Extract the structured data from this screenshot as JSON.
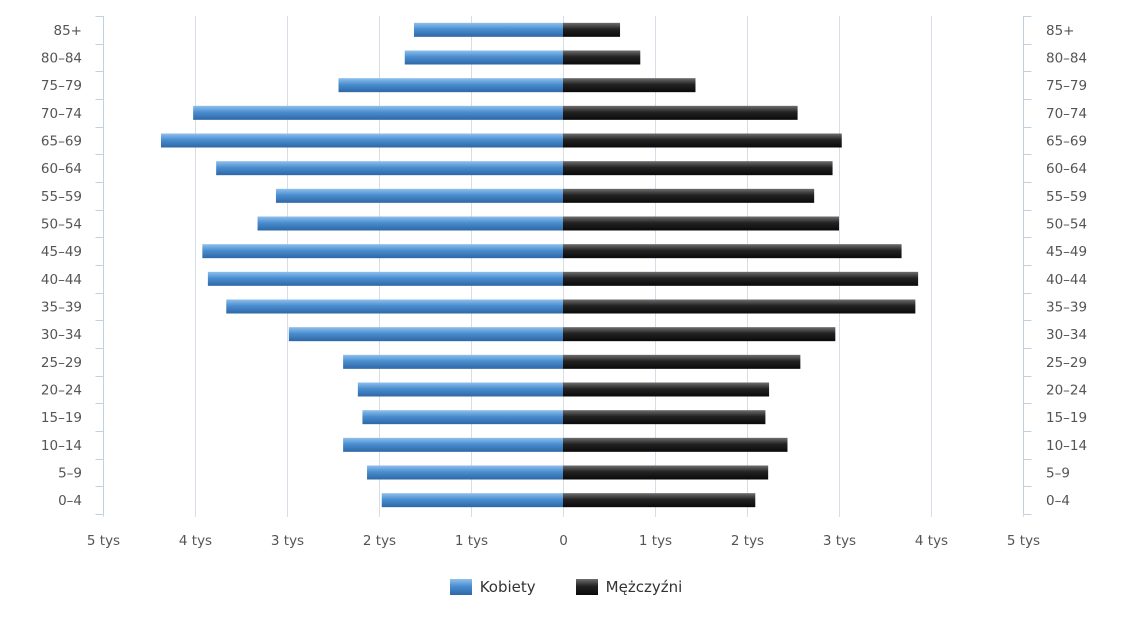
{
  "chart_data": {
    "type": "bar",
    "orientation": "horizontal",
    "title": "",
    "categories": [
      "85+",
      "80-84",
      "75-79",
      "70-74",
      "65-69",
      "60-64",
      "55-59",
      "50-54",
      "45-49",
      "40-44",
      "35-39",
      "30-34",
      "25-29",
      "20-24",
      "15-19",
      "10-14",
      "5-9",
      "0-4"
    ],
    "series": [
      {
        "name": "Kobiety",
        "color": "#3f7fc0",
        "values": [
          1620,
          1720,
          2440,
          4020,
          4370,
          3770,
          3120,
          3320,
          3920,
          3860,
          3660,
          2980,
          2390,
          2230,
          2180,
          2390,
          2130,
          1970
        ]
      },
      {
        "name": "Mężczyźni",
        "color": "#1e1e1e",
        "values": [
          620,
          840,
          1440,
          2550,
          3030,
          2930,
          2730,
          3000,
          3680,
          3860,
          3830,
          2960,
          2580,
          2240,
          2200,
          2440,
          2230,
          2090
        ]
      }
    ],
    "xlim": [
      -5000,
      5000
    ],
    "x_ticks": [
      {
        "value": -5000,
        "label": "5 tys"
      },
      {
        "value": -4000,
        "label": "4 tys"
      },
      {
        "value": -3000,
        "label": "3 tys"
      },
      {
        "value": -2000,
        "label": "2 tys"
      },
      {
        "value": -1000,
        "label": "1 tys"
      },
      {
        "value": 0,
        "label": "0"
      },
      {
        "value": 1000,
        "label": "1 tys"
      },
      {
        "value": 2000,
        "label": "2 tys"
      },
      {
        "value": 3000,
        "label": "3 tys"
      },
      {
        "value": 4000,
        "label": "4 tys"
      },
      {
        "value": 5000,
        "label": "5 tys"
      }
    ],
    "grid": true,
    "legend_position": "bottom"
  }
}
